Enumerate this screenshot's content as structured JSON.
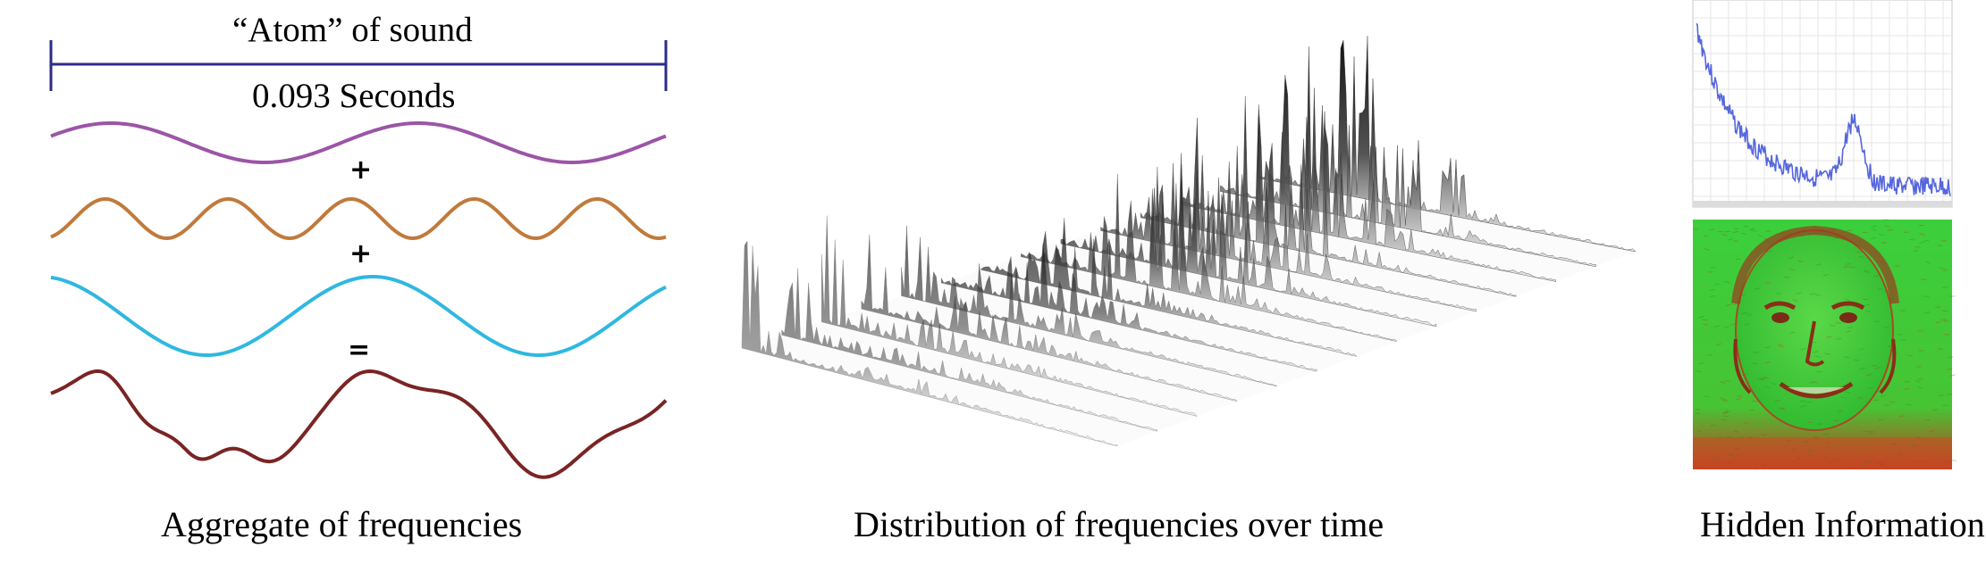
{
  "left_panel": {
    "atom_label": "“Atom” of sound",
    "duration_label": "0.093 Seconds",
    "operators": [
      "+",
      "+",
      "="
    ],
    "caption": "Aggregate of frequencies",
    "colors": {
      "wave1": "#9b55a6",
      "wave2": "#c07a3c",
      "wave3": "#2fb8e0",
      "sum": "#7a2424",
      "bracket": "#2b2b8a"
    }
  },
  "middle_panel": {
    "caption": "Distribution of frequencies over time"
  },
  "right_panel": {
    "caption": "Hidden Information",
    "colors": {
      "spectrum_line": "#5566dd",
      "image_green": "#30d030",
      "image_red": "#c83a20"
    }
  }
}
